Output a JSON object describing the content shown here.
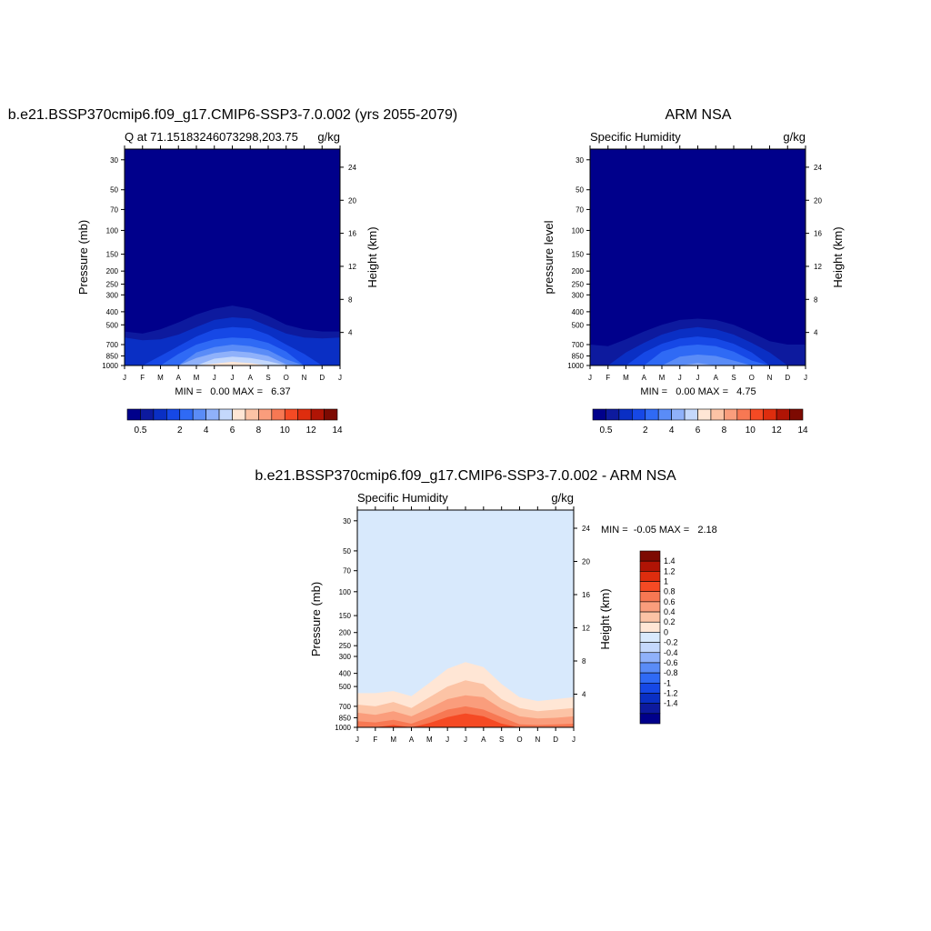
{
  "chart_data": [
    {
      "type": "heatmap",
      "title": "b.e21.BSSP370cmip6.f09_g17.CMIP6-SSP3-7.0.002 (yrs 2055-2079)",
      "left_subtitle": "Q at 71.15183246073298,203.75",
      "right_subtitle": "g/kg",
      "ylabel": "Pressure (mb)",
      "y2label": "Height (km)",
      "stats_text": "MIN =   0.00 MAX =   6.37",
      "colorbar": {
        "orientation": "horizontal",
        "levels": [
          0.5,
          1,
          1.5,
          2,
          3,
          4,
          5,
          6,
          7,
          8,
          9,
          10,
          11,
          12,
          13,
          14
        ],
        "labels": [
          "0.5",
          "2",
          "4",
          "6",
          "8",
          "10",
          "12",
          "14"
        ]
      },
      "contour_levels": [
        0.5,
        1,
        1.5,
        2,
        3,
        4,
        5,
        6
      ],
      "contour_tops_mb": {
        "x_months": [
          0,
          1,
          2,
          3,
          4,
          5,
          6,
          7,
          8,
          9,
          10,
          11,
          12
        ],
        "level_0.5": [
          560,
          580,
          540,
          480,
          420,
          380,
          360,
          380,
          430,
          500,
          540,
          560,
          560
        ],
        "level_1": [
          620,
          650,
          640,
          590,
          520,
          460,
          440,
          450,
          510,
          580,
          620,
          630,
          620
        ],
        "level_1.5": [
          1000,
          1000,
          850,
          720,
          610,
          540,
          520,
          530,
          590,
          700,
          820,
          1000,
          1000
        ],
        "level_2": [
          1000,
          1000,
          1000,
          820,
          700,
          640,
          620,
          630,
          680,
          790,
          1000,
          1000,
          1000
        ],
        "level_3": [
          1000,
          1000,
          1000,
          1000,
          800,
          730,
          700,
          720,
          770,
          900,
          1000,
          1000,
          1000
        ],
        "level_4": [
          1000,
          1000,
          1000,
          1000,
          880,
          810,
          780,
          800,
          850,
          980,
          1000,
          1000,
          1000
        ],
        "level_5": [
          1000,
          1000,
          1000,
          1000,
          1000,
          890,
          860,
          880,
          930,
          1000,
          1000,
          1000,
          1000
        ],
        "level_6": [
          1000,
          1000,
          1000,
          1000,
          1000,
          970,
          940,
          960,
          1000,
          1000,
          1000,
          1000,
          1000
        ]
      }
    },
    {
      "type": "heatmap",
      "title": "ARM NSA",
      "left_subtitle": "Specific Humidity",
      "right_subtitle": "g/kg",
      "ylabel": "pressure level",
      "y2label": "Height (km)",
      "stats_text": "MIN =   0.00 MAX =   4.75",
      "colorbar": {
        "orientation": "horizontal",
        "levels": [
          0.5,
          1,
          1.5,
          2,
          3,
          4,
          5,
          6,
          7,
          8,
          9,
          10,
          11,
          12,
          13,
          14
        ],
        "labels": [
          "0.5",
          "2",
          "4",
          "6",
          "8",
          "10",
          "12",
          "14"
        ]
      },
      "contour_levels": [
        0.5,
        1,
        1.5,
        2,
        3,
        4
      ],
      "contour_tops_mb": {
        "x_months": [
          0,
          1,
          2,
          3,
          4,
          5,
          6,
          7,
          8,
          9,
          10,
          11,
          12
        ],
        "level_0.5": [
          700,
          720,
          640,
          560,
          500,
          460,
          450,
          460,
          500,
          570,
          660,
          700,
          700
        ],
        "level_1": [
          1000,
          1000,
          800,
          680,
          590,
          540,
          520,
          540,
          590,
          680,
          800,
          1000,
          1000
        ],
        "level_1.5": [
          1000,
          1000,
          1000,
          800,
          690,
          630,
          610,
          630,
          690,
          800,
          1000,
          1000,
          1000
        ],
        "level_2": [
          1000,
          1000,
          1000,
          1000,
          790,
          720,
          700,
          720,
          790,
          920,
          1000,
          1000,
          1000
        ],
        "level_3": [
          1000,
          1000,
          1000,
          1000,
          1000,
          860,
          830,
          850,
          920,
          1000,
          1000,
          1000,
          1000
        ],
        "level_4": [
          1000,
          1000,
          1000,
          1000,
          1000,
          1000,
          960,
          1000,
          1000,
          1000,
          1000,
          1000,
          1000
        ]
      }
    },
    {
      "type": "heatmap",
      "title": "b.e21.BSSP370cmip6.f09_g17.CMIP6-SSP3-7.0.002 - ARM NSA",
      "left_subtitle": "Specific Humidity",
      "right_subtitle": "g/kg",
      "ylabel": "Pressure (mb)",
      "y2label": "Height (km)",
      "stats_text": "MIN =  -0.05 MAX =   2.18",
      "colorbar": {
        "orientation": "vertical",
        "levels": [
          -1.4,
          -1.2,
          -1,
          -0.8,
          -0.6,
          -0.4,
          -0.2,
          0,
          0.2,
          0.4,
          0.6,
          0.8,
          1,
          1.2,
          1.4
        ],
        "labels": [
          "1.4",
          "1.2",
          "1",
          "0.8",
          "0.6",
          "0.4",
          "0.2",
          "0",
          "-0.2",
          "-0.4",
          "-0.6",
          "-0.8",
          "-1",
          "-1.2",
          "-1.4"
        ]
      },
      "contour_levels": [
        0,
        0.2,
        0.4,
        0.6,
        0.8,
        1
      ],
      "contour_tops_mb": {
        "x_months": [
          0,
          1,
          2,
          3,
          4,
          5,
          6,
          7,
          8,
          9,
          10,
          11,
          12
        ],
        "level_0": [
          148,
          150,
          152,
          151,
          153,
          152,
          150,
          148,
          153,
          150,
          147,
          145,
          145
        ],
        "level_0.2": [
          560,
          560,
          540,
          590,
          470,
          370,
          330,
          360,
          480,
          600,
          640,
          620,
          600
        ],
        "level_0.4": [
          680,
          700,
          650,
          720,
          600,
          500,
          450,
          480,
          620,
          720,
          760,
          740,
          720
        ],
        "level_0.6": [
          780,
          810,
          760,
          830,
          720,
          620,
          580,
          600,
          730,
          830,
          860,
          850,
          830
        ],
        "level_0.8": [
          900,
          920,
          880,
          940,
          840,
          740,
          700,
          740,
          840,
          950,
          960,
          950,
          940
        ],
        "level_1": [
          1000,
          1000,
          960,
          1000,
          930,
          840,
          790,
          830,
          940,
          1000,
          1000,
          1000,
          1000
        ]
      }
    }
  ],
  "x_tick_labels": [
    "J",
    "F",
    "M",
    "A",
    "M",
    "J",
    "J",
    "A",
    "S",
    "O",
    "N",
    "D",
    "J"
  ],
  "pressure_ticks": [
    30,
    50,
    70,
    100,
    150,
    200,
    250,
    300,
    400,
    500,
    700,
    850,
    1000
  ],
  "height_ticks_km": [
    4,
    8,
    12,
    16,
    20,
    24
  ],
  "colors": {
    "positive_ramp": [
      "#00008b",
      "#0d1a9e",
      "#0a2fc4",
      "#1648e6",
      "#2f6af5",
      "#5a8cf7",
      "#8fb1fa",
      "#c4d8fc",
      "#ffe6d5",
      "#fcc3a5",
      "#fa9d7c",
      "#f77853",
      "#f54a24",
      "#de2d0e",
      "#b01405",
      "#7d0a02"
    ],
    "diverging_ramp": [
      "#00008b",
      "#0d1a9e",
      "#0a2fc4",
      "#1648e6",
      "#2f6af5",
      "#5a8cf7",
      "#8fb1fa",
      "#c4d8fc",
      "#d8e9fc",
      "#ffe6d5",
      "#fcc3a5",
      "#fa9d7c",
      "#f77853",
      "#f54a24",
      "#de2d0e",
      "#b01405",
      "#7d0a02"
    ]
  }
}
